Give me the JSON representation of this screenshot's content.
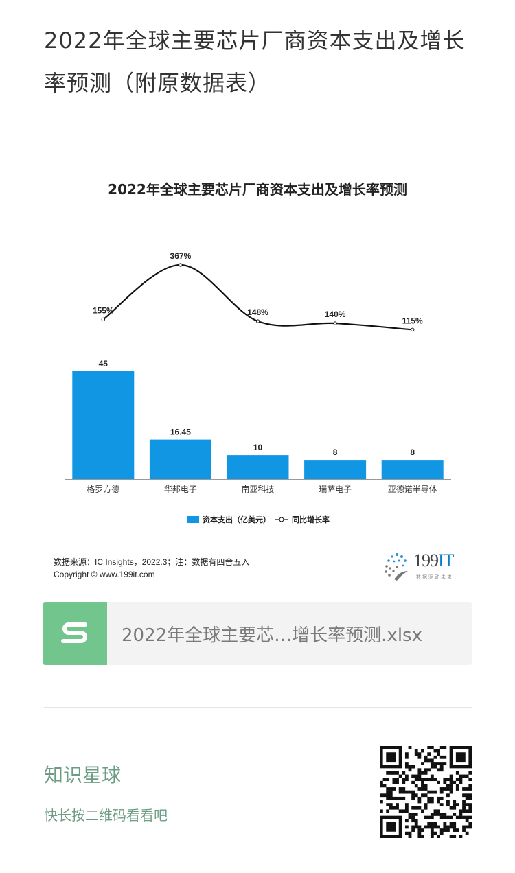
{
  "post": {
    "title": "2022年全球主要芯片厂商资本支出及增长率预测（附原数据表）"
  },
  "chart_data": {
    "type": "bar",
    "title": "2022年全球主要芯片厂商资本支出及增长率预测",
    "categories": [
      "格罗方德",
      "华邦电子",
      "南亚科技",
      "瑞萨电子",
      "亚德诺半导体"
    ],
    "series": [
      {
        "name": "资本支出（亿美元）",
        "type": "bar",
        "values": [
          45,
          16.45,
          10,
          8,
          8
        ],
        "labels": [
          "45",
          "16.45",
          "10",
          "8",
          "8"
        ],
        "color": "#1196e3"
      },
      {
        "name": "同比增长率",
        "type": "line",
        "values": [
          155,
          367,
          148,
          140,
          115
        ],
        "labels": [
          "155%",
          "367%",
          "148%",
          "140%",
          "115%"
        ],
        "color": "#111111"
      }
    ],
    "source": "数据来源：IC Insights，2022.3；注：数据有四舍五入",
    "copyright": "Copyright © www.199it.com"
  },
  "logo": {
    "main": "199",
    "accent": "IT",
    "tagline": "数据驱动未来"
  },
  "file": {
    "name": "2022年全球主要芯…增长率预测.xlsx",
    "icon": "spreadsheet-s-icon"
  },
  "planet": {
    "title": "知识星球",
    "subtitle": "快长按二维码看看吧"
  },
  "colors": {
    "bar": "#1196e3",
    "file_icon": "#72c58d",
    "planet_text": "#6d9c84"
  }
}
